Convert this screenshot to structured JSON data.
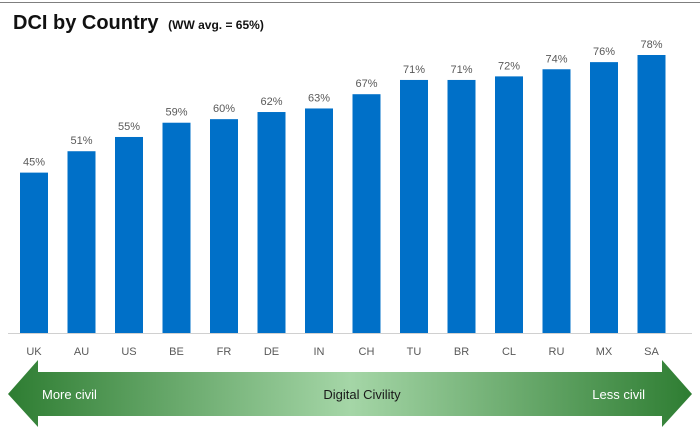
{
  "title": "DCI by Country",
  "subtitle": "(WW avg. = 65%)",
  "arrow": {
    "left_label": "More civil",
    "center_label": "Digital Civility",
    "right_label": "Less civil",
    "color_dark": "#2e7d32",
    "color_light": "#a5d6a7"
  },
  "colors": {
    "bar": "#0070c8",
    "axis": "#d0d0d0",
    "text": "#595959"
  },
  "chart_data": {
    "type": "bar",
    "title": "DCI by Country (WW avg. = 65%)",
    "categories": [
      "UK",
      "AU",
      "US",
      "BE",
      "FR",
      "DE",
      "IN",
      "CH",
      "TU",
      "BR",
      "CL",
      "RU",
      "MX",
      "SA"
    ],
    "values": [
      45,
      51,
      55,
      59,
      60,
      62,
      63,
      67,
      71,
      71,
      72,
      74,
      76,
      78
    ],
    "value_labels": [
      "45%",
      "51%",
      "55%",
      "59%",
      "60%",
      "62%",
      "63%",
      "67%",
      "71%",
      "71%",
      "72%",
      "74%",
      "76%",
      "78%"
    ],
    "xlabel": "",
    "ylabel": "",
    "ylim": [
      0,
      78
    ],
    "grid": false
  }
}
